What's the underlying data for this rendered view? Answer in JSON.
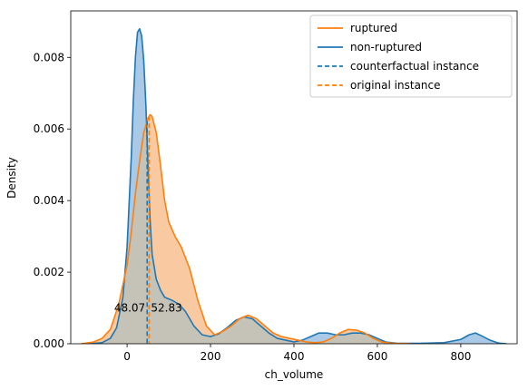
{
  "chart_data": {
    "type": "area",
    "title": "",
    "xlabel": "ch_volume",
    "ylabel": "Density",
    "xlim": [
      -135,
      935
    ],
    "ylim": [
      0,
      0.0093
    ],
    "x_ticks": [
      "0",
      "200",
      "400",
      "600",
      "800"
    ],
    "x_tick_values": [
      0,
      200,
      400,
      600,
      800
    ],
    "y_ticks": [
      "0.000",
      "0.002",
      "0.004",
      "0.006",
      "0.008"
    ],
    "y_tick_values": [
      0,
      0.002,
      0.004,
      0.006,
      0.008
    ],
    "legend_position": "top-right",
    "series": [
      {
        "name": "non-ruptured",
        "color": "#1f77b4",
        "fill": "#a9c9e6",
        "points": [
          [
            -90,
            0
          ],
          [
            -60,
            3e-05
          ],
          [
            -40,
            0.00015
          ],
          [
            -25,
            0.00045
          ],
          [
            -10,
            0.0013
          ],
          [
            0,
            0.0027
          ],
          [
            10,
            0.0052
          ],
          [
            15,
            0.0068
          ],
          [
            20,
            0.008
          ],
          [
            25,
            0.0087
          ],
          [
            30,
            0.0088
          ],
          [
            35,
            0.0086
          ],
          [
            40,
            0.0079
          ],
          [
            45,
            0.0067
          ],
          [
            50,
            0.005
          ],
          [
            55,
            0.0035
          ],
          [
            60,
            0.0025
          ],
          [
            70,
            0.0018
          ],
          [
            80,
            0.0015
          ],
          [
            90,
            0.0013
          ],
          [
            100,
            0.00125
          ],
          [
            110,
            0.0012
          ],
          [
            125,
            0.0011
          ],
          [
            140,
            0.0009
          ],
          [
            160,
            0.0005
          ],
          [
            180,
            0.00025
          ],
          [
            200,
            0.0002
          ],
          [
            220,
            0.00028
          ],
          [
            240,
            0.00045
          ],
          [
            260,
            0.00065
          ],
          [
            280,
            0.00075
          ],
          [
            300,
            0.0007
          ],
          [
            320,
            0.0005
          ],
          [
            340,
            0.0003
          ],
          [
            360,
            0.00015
          ],
          [
            380,
            0.0001
          ],
          [
            400,
            5e-05
          ],
          [
            420,
            0.0001
          ],
          [
            440,
            0.0002
          ],
          [
            460,
            0.0003
          ],
          [
            480,
            0.0003
          ],
          [
            500,
            0.00025
          ],
          [
            520,
            0.00025
          ],
          [
            540,
            0.0003
          ],
          [
            560,
            0.0003
          ],
          [
            580,
            0.00025
          ],
          [
            600,
            0.00015
          ],
          [
            620,
            5e-05
          ],
          [
            650,
            1e-05
          ],
          [
            700,
            1e-05
          ],
          [
            760,
            3e-05
          ],
          [
            800,
            0.00012
          ],
          [
            820,
            0.00025
          ],
          [
            835,
            0.0003
          ],
          [
            850,
            0.00022
          ],
          [
            870,
            0.0001
          ],
          [
            890,
            2e-05
          ],
          [
            910,
            0
          ]
        ]
      },
      {
        "name": "ruptured",
        "color": "#ff7f0e",
        "fill": "#f9c9a1",
        "points": [
          [
            -110,
            0
          ],
          [
            -80,
            5e-05
          ],
          [
            -60,
            0.00015
          ],
          [
            -40,
            0.0004
          ],
          [
            -20,
            0.0011
          ],
          [
            0,
            0.0022
          ],
          [
            10,
            0.0031
          ],
          [
            20,
            0.0042
          ],
          [
            30,
            0.0051
          ],
          [
            40,
            0.0059
          ],
          [
            50,
            0.0063
          ],
          [
            55,
            0.0064
          ],
          [
            60,
            0.00635
          ],
          [
            70,
            0.0059
          ],
          [
            80,
            0.005
          ],
          [
            90,
            0.004
          ],
          [
            100,
            0.0034
          ],
          [
            115,
            0.003
          ],
          [
            130,
            0.0027
          ],
          [
            150,
            0.0021
          ],
          [
            170,
            0.0012
          ],
          [
            190,
            0.0005
          ],
          [
            210,
            0.00025
          ],
          [
            230,
            0.00035
          ],
          [
            250,
            0.0005
          ],
          [
            270,
            0.0007
          ],
          [
            290,
            0.0008
          ],
          [
            310,
            0.0007
          ],
          [
            330,
            0.0005
          ],
          [
            350,
            0.0003
          ],
          [
            370,
            0.0002
          ],
          [
            390,
            0.00015
          ],
          [
            410,
            0.0001
          ],
          [
            430,
            5e-05
          ],
          [
            450,
            3e-05
          ],
          [
            470,
            5e-05
          ],
          [
            490,
            0.00015
          ],
          [
            510,
            0.0003
          ],
          [
            530,
            0.0004
          ],
          [
            550,
            0.00038
          ],
          [
            570,
            0.0003
          ],
          [
            590,
            0.00015
          ],
          [
            610,
            5e-05
          ],
          [
            640,
            1e-05
          ],
          [
            680,
            0
          ]
        ]
      }
    ],
    "overlap_fill": "#c5c3b8",
    "vertical_lines": [
      {
        "name": "counterfactual instance",
        "x": 48.07,
        "color": "#1f77b4"
      },
      {
        "name": "original instance",
        "x": 52.83,
        "color": "#ff7f0e"
      }
    ],
    "annotations": [
      {
        "text": "48.07",
        "x": 48.07
      },
      {
        "text": "52.83",
        "x": 52.83
      }
    ],
    "legend": [
      {
        "label": "ruptured",
        "color": "#ff7f0e",
        "style": "solid"
      },
      {
        "label": "non-ruptured",
        "color": "#1f77b4",
        "style": "solid"
      },
      {
        "label": "counterfactual instance",
        "color": "#1f77b4",
        "style": "dashed"
      },
      {
        "label": "original instance",
        "color": "#ff7f0e",
        "style": "dashed"
      }
    ]
  }
}
